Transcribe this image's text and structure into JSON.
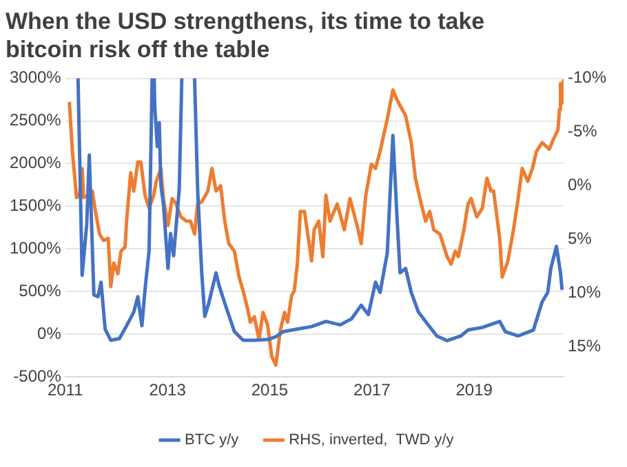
{
  "chart_data": {
    "type": "line",
    "title": "When the USD strengthens, its time to take bitcoin risk off the table",
    "xlim": [
      2011,
      2020.75
    ],
    "xticks": [
      2011,
      2013,
      2015,
      2017,
      2019
    ],
    "ylim": [
      -500,
      3000
    ],
    "yticks": [
      {
        "value": -500,
        "label": "-500%"
      },
      {
        "value": 0,
        "label": "0%"
      },
      {
        "value": 500,
        "label": "500%"
      },
      {
        "value": 1000,
        "label": "1000%"
      },
      {
        "value": 1500,
        "label": "1500%"
      },
      {
        "value": 2000,
        "label": "2000%"
      },
      {
        "value": 2500,
        "label": "2500%"
      },
      {
        "value": 3000,
        "label": "3000%"
      }
    ],
    "y2lim": [
      17.8,
      -10
    ],
    "y2ticks": [
      {
        "value": -10,
        "label": "-10%"
      },
      {
        "value": -5,
        "label": "-5%"
      },
      {
        "value": 0,
        "label": "0%"
      },
      {
        "value": 5,
        "label": "5%"
      },
      {
        "value": 10,
        "label": "10%"
      },
      {
        "value": 15,
        "label": "15%"
      }
    ],
    "grid": "y",
    "legend": "bottom",
    "marker": "none",
    "line_style": "solid",
    "series": [
      {
        "name": "BTC y/y",
        "color": "#4472c4",
        "x": [
          2011.25,
          2011.33,
          2011.42,
          2011.47,
          2011.56,
          2011.64,
          2011.7,
          2011.78,
          2011.89,
          2012.06,
          2012.2,
          2012.34,
          2012.42,
          2012.5,
          2012.56,
          2012.64,
          2012.7,
          2012.72,
          2012.74,
          2012.75,
          2012.8,
          2012.84,
          2012.87,
          2012.92,
          2013.01,
          2013.06,
          2013.12,
          2013.23,
          2013.28,
          2013.4,
          2013.53,
          2013.59,
          2013.67,
          2013.73,
          2013.81,
          2013.95,
          2014.01,
          2014.15,
          2014.31,
          2014.48,
          2014.7,
          2014.98,
          2015.12,
          2015.26,
          2015.54,
          2015.82,
          2016.1,
          2016.38,
          2016.6,
          2016.79,
          2016.93,
          2017.07,
          2017.16,
          2017.3,
          2017.41,
          2017.49,
          2017.55,
          2017.66,
          2017.77,
          2017.91,
          2018.05,
          2018.27,
          2018.47,
          2018.74,
          2018.88,
          2019.16,
          2019.5,
          2019.61,
          2019.86,
          2020.16,
          2020.33,
          2020.44,
          2020.5,
          2020.61,
          2020.69,
          2020.72
        ],
        "values": [
          3000,
          690,
          1290,
          2100,
          460,
          440,
          610,
          60,
          -70,
          -50,
          100,
          260,
          440,
          100,
          520,
          980,
          3000,
          null,
          3000,
          2680,
          2200,
          2480,
          1750,
          1530,
          770,
          1180,
          920,
          1700,
          3000,
          null,
          3000,
          1690,
          720,
          210,
          370,
          720,
          570,
          310,
          30,
          -70,
          -70,
          -60,
          -30,
          30,
          60,
          90,
          150,
          110,
          180,
          340,
          230,
          610,
          490,
          950,
          2330,
          1380,
          720,
          770,
          490,
          260,
          150,
          -20,
          -75,
          -20,
          50,
          80,
          150,
          30,
          -20,
          50,
          380,
          490,
          770,
          1030,
          720,
          520
        ]
      },
      {
        "name": "RHS, inverted,  TWD y/y",
        "color": "#ed7d31",
        "axis": "y2",
        "x": [
          2011.08,
          2011.14,
          2011.22,
          2011.28,
          2011.33,
          2011.36,
          2011.45,
          2011.53,
          2011.58,
          2011.67,
          2011.75,
          2011.84,
          2011.89,
          2011.95,
          2012.03,
          2012.09,
          2012.17,
          2012.2,
          2012.28,
          2012.34,
          2012.42,
          2012.48,
          2012.56,
          2012.64,
          2012.73,
          2012.78,
          2012.87,
          2012.92,
          2013.01,
          2013.09,
          2013.17,
          2013.26,
          2013.37,
          2013.45,
          2013.53,
          2013.59,
          2013.67,
          2013.79,
          2013.87,
          2013.95,
          2014.04,
          2014.12,
          2014.2,
          2014.31,
          2014.4,
          2014.48,
          2014.57,
          2014.62,
          2014.7,
          2014.79,
          2014.87,
          2014.96,
          2015.04,
          2015.12,
          2015.21,
          2015.29,
          2015.35,
          2015.43,
          2015.48,
          2015.54,
          2015.6,
          2015.68,
          2015.82,
          2015.87,
          2015.96,
          2016.04,
          2016.1,
          2016.18,
          2016.32,
          2016.46,
          2016.57,
          2016.71,
          2016.79,
          2016.88,
          2016.99,
          2017.07,
          2017.16,
          2017.3,
          2017.41,
          2017.49,
          2017.57,
          2017.66,
          2017.77,
          2017.85,
          2017.94,
          2018.05,
          2018.13,
          2018.21,
          2018.33,
          2018.47,
          2018.55,
          2018.63,
          2018.69,
          2018.8,
          2018.88,
          2018.94,
          2019.05,
          2019.16,
          2019.25,
          2019.33,
          2019.38,
          2019.5,
          2019.55,
          2019.66,
          2019.77,
          2019.86,
          2019.94,
          2020.05,
          2020.14,
          2020.22,
          2020.33,
          2020.47,
          2020.55,
          2020.64,
          2020.67,
          2020.69,
          2020.72,
          2020.75
        ],
        "values": [
          -7.8,
          -3.2,
          1.1,
          0.9,
          -1.6,
          1.1,
          0.9,
          0.5,
          2.1,
          4.5,
          5.1,
          4.9,
          9.4,
          7.2,
          8.2,
          6.1,
          5.7,
          3.3,
          -1.2,
          0.5,
          -2.2,
          -2.2,
          0.9,
          2.1,
          0.9,
          -0.4,
          -1.6,
          1.2,
          3.7,
          1.2,
          1.7,
          2.9,
          3.3,
          3.3,
          4.5,
          1.7,
          1.5,
          0.5,
          -1.6,
          0.5,
          0,
          3.3,
          5.4,
          6.1,
          8.5,
          9.8,
          11.5,
          12.7,
          12.2,
          14.3,
          11.8,
          13,
          15.9,
          16.7,
          13.4,
          11.8,
          12.7,
          10.2,
          9.8,
          7.3,
          2.4,
          2.4,
          7,
          4.1,
          3.3,
          6.6,
          0.9,
          3.3,
          1.7,
          4.1,
          1.2,
          3.7,
          5.4,
          0.9,
          -2,
          -1.6,
          -3.2,
          -6.2,
          -8.9,
          -8,
          -7.3,
          -6.5,
          -4,
          -0.7,
          1.2,
          3.3,
          2.4,
          4.1,
          4.5,
          6.6,
          7.3,
          6.1,
          6.6,
          4.1,
          1.7,
          1.2,
          2.9,
          2.1,
          -0.7,
          0.5,
          0.5,
          4.9,
          8.5,
          7,
          4.1,
          1.2,
          -1.6,
          -0.4,
          -1.6,
          -3.2,
          -4,
          -3.4,
          -4.3,
          -5.2,
          -7.1,
          -9.5,
          -7.7,
          -9.9
        ]
      }
    ]
  }
}
